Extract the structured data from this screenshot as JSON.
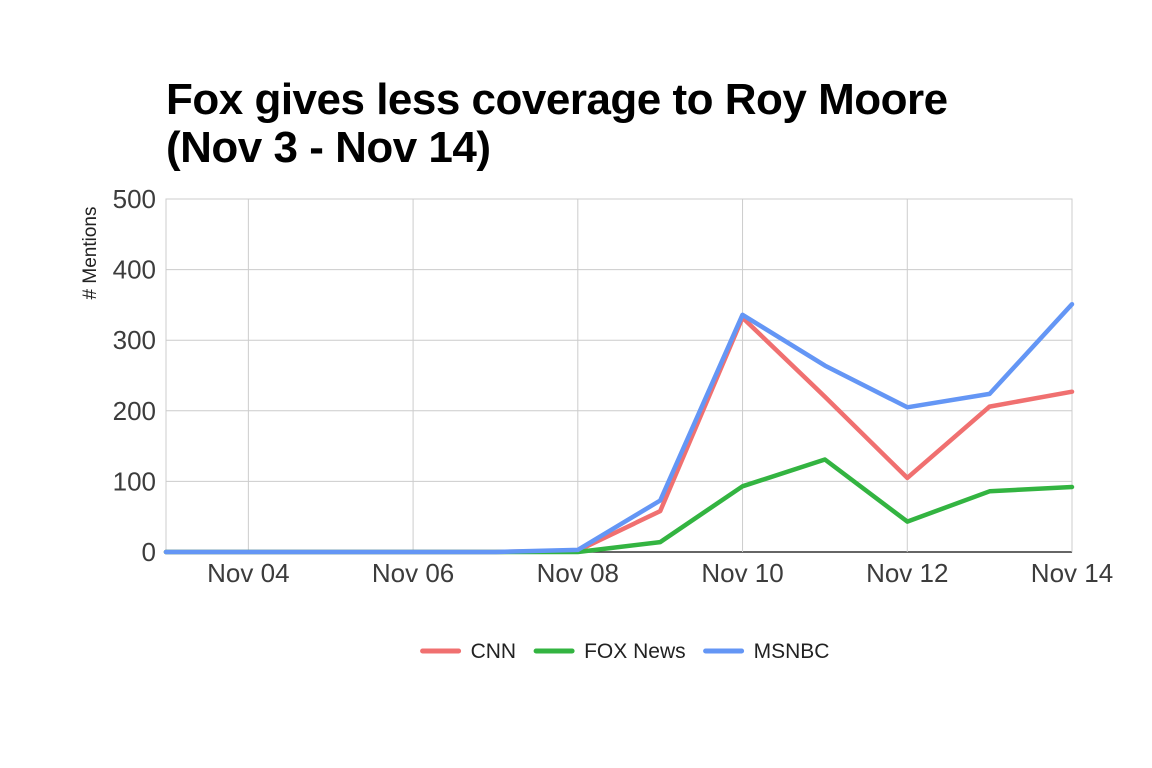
{
  "chart_data": {
    "type": "line",
    "title_lines": [
      "Fox gives less coverage to Roy Moore",
      "(Nov 3 - Nov 14)"
    ],
    "xlabel": "",
    "ylabel": "# Mentions",
    "x": [
      "Nov 03",
      "Nov 04",
      "Nov 05",
      "Nov 06",
      "Nov 07",
      "Nov 08",
      "Nov 09",
      "Nov 10",
      "Nov 11",
      "Nov 12",
      "Nov 13",
      "Nov 14"
    ],
    "x_ticks": [
      "Nov 04",
      "Nov 06",
      "Nov 08",
      "Nov 10",
      "Nov 12",
      "Nov 14"
    ],
    "y_ticks": [
      0,
      100,
      200,
      300,
      400,
      500
    ],
    "ylim": [
      0,
      500
    ],
    "grid": true,
    "legend_position": "bottom",
    "series": [
      {
        "name": "CNN",
        "color": "#f07070",
        "values": [
          0,
          0,
          0,
          0,
          0,
          2,
          58,
          332,
          220,
          105,
          206,
          227
        ]
      },
      {
        "name": "FOX News",
        "color": "#33b441",
        "values": [
          0,
          0,
          0,
          0,
          0,
          0,
          14,
          93,
          131,
          43,
          86,
          92
        ]
      },
      {
        "name": "MSNBC",
        "color": "#6496f5",
        "values": [
          0,
          0,
          0,
          0,
          0,
          3,
          73,
          336,
          264,
          205,
          224,
          351
        ]
      }
    ]
  }
}
